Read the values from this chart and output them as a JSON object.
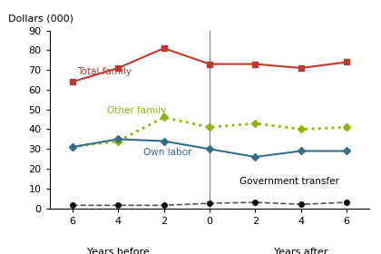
{
  "x_values": [
    -6,
    -4,
    -2,
    0,
    2,
    4,
    6
  ],
  "total_family": [
    64,
    71,
    81,
    73,
    73,
    71,
    74
  ],
  "other_family": [
    31,
    34,
    46,
    41,
    43,
    40,
    41
  ],
  "own_labor": [
    31,
    35,
    34,
    30,
    26,
    29,
    29
  ],
  "gov_transfer": [
    1.5,
    1.5,
    1.5,
    2.5,
    3,
    2,
    3
  ],
  "total_family_color": "#c0392b",
  "other_family_color": "#8db600",
  "own_labor_color": "#336e88",
  "gov_transfer_color": "#555555",
  "ylabel": "Dollars (000)",
  "ylim": [
    0,
    90
  ],
  "yticks": [
    0,
    10,
    20,
    30,
    40,
    50,
    60,
    70,
    80,
    90
  ],
  "label_total_family": "Total family",
  "label_other_family": "Other family",
  "label_own_labor": "Own labor",
  "label_gov_transfer": "Government transfer",
  "xlabel_before": "Years before",
  "xlabel_after": "Years after"
}
